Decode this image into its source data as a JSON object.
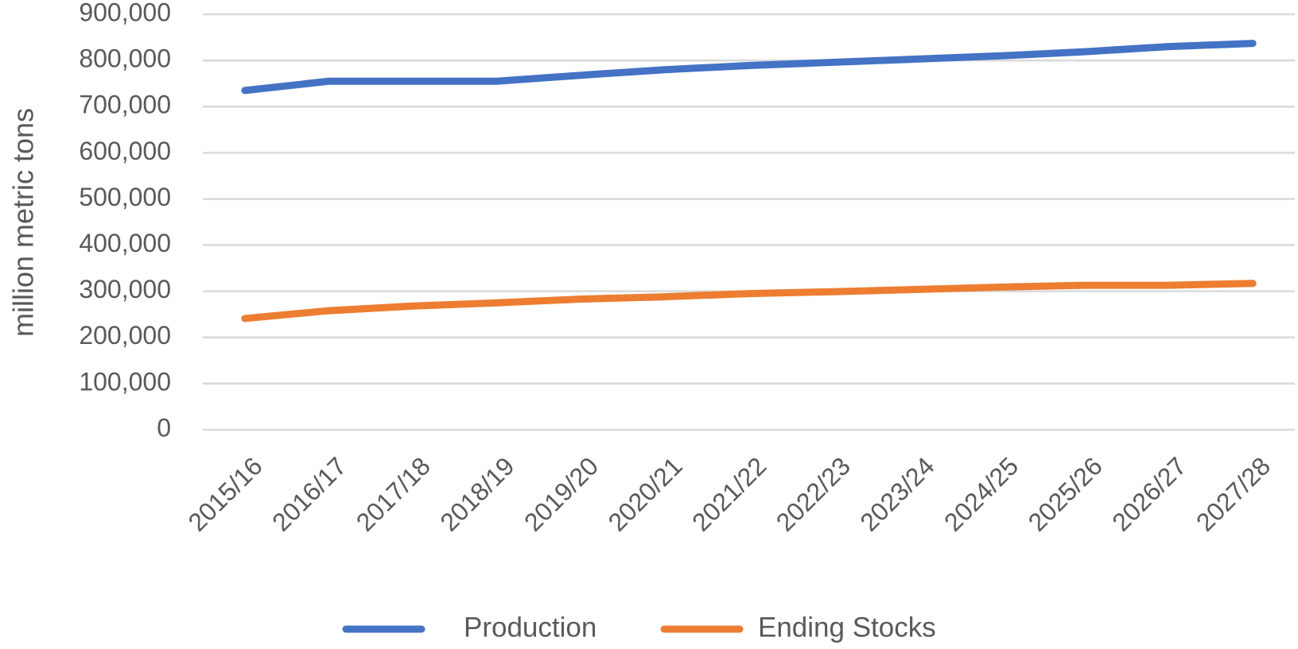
{
  "chart_data": {
    "type": "line",
    "y_label": "million metric tons",
    "categories": [
      "2015/16",
      "2016/17",
      "2017/18",
      "2018/19",
      "2019/20",
      "2020/21",
      "2021/22",
      "2022/23",
      "2023/24",
      "2024/25",
      "2025/26",
      "2026/27",
      "2027/28"
    ],
    "series": [
      {
        "name": "Production",
        "color": "#4472c4",
        "values": [
          735000,
          755000,
          755000,
          755000,
          768000,
          780000,
          789000,
          796000,
          803000,
          810000,
          819000,
          830000,
          837000
        ]
      },
      {
        "name": "Ending Stocks",
        "color": "#ed7d31",
        "values": [
          241000,
          258000,
          268000,
          275000,
          283000,
          288000,
          295000,
          299000,
          304000,
          309000,
          313000,
          313000,
          317000
        ]
      }
    ],
    "ylim": [
      0,
      900000
    ],
    "yticks": [
      0,
      {
        "value": 100000,
        "label": "100,000"
      },
      {
        "value": 200000,
        "label": "200,000"
      },
      {
        "value": 300000,
        "label": "300,000"
      },
      {
        "value": 400000,
        "label": "400,000"
      },
      {
        "value": 500000,
        "label": "500,000"
      },
      {
        "value": 600000,
        "label": "600,000"
      },
      {
        "value": 700000,
        "label": "700,000"
      },
      {
        "value": 800000,
        "label": "800,000"
      },
      {
        "value": 900000,
        "label": "900,000"
      }
    ],
    "grid": true,
    "legend": "bottom"
  }
}
